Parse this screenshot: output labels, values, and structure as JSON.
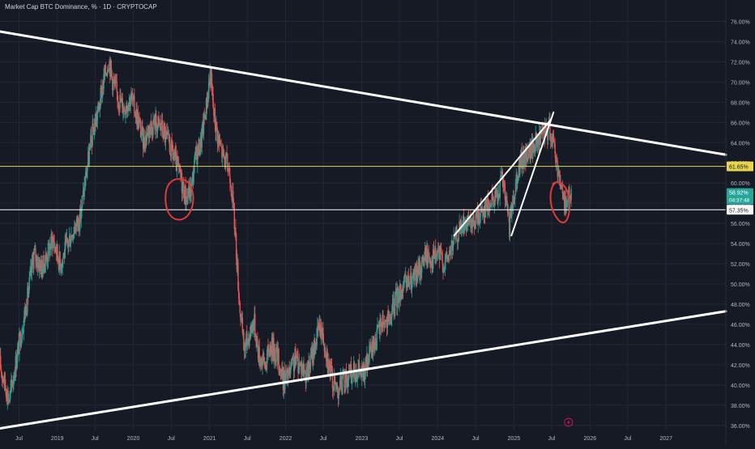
{
  "header": {
    "title": "Market Cap BTC Dominance, % · 1D · CRYPTOCAP"
  },
  "colors": {
    "background": "#161a25",
    "grid": "#232733",
    "text": "#b2b5be",
    "candle_up": "#26a69a",
    "candle_down": "#ef5350",
    "drawing": "#ffffff",
    "level_upper": "#e8d44d",
    "level_lower": "#ffffff",
    "annotation": "#e03a3a",
    "price_badge": "#26a69a"
  },
  "chart_data": {
    "type": "candlestick",
    "title": "Market Cap BTC Dominance, % · 1D · CRYPTOCAP",
    "x_ticks": [
      "Jul",
      "2019",
      "Jul",
      "2020",
      "Jul",
      "2021",
      "Jul",
      "2022",
      "Jul",
      "2023",
      "Jul",
      "2024",
      "Jul",
      "2025",
      "Jul",
      "2026",
      "Jul",
      "2027"
    ],
    "y_ticks": [
      "76.00%",
      "74.00%",
      "72.00%",
      "70.00%",
      "68.00%",
      "66.00%",
      "64.00%",
      "62.00%",
      "60.00%",
      "58.00%",
      "56.00%",
      "54.00%",
      "52.00%",
      "50.00%",
      "48.00%",
      "46.00%",
      "44.00%",
      "42.00%",
      "40.00%",
      "38.00%",
      "36.00%"
    ],
    "ylim": [
      35.5,
      77.0
    ],
    "xlim": [
      "2018-04-01",
      "2027-10-15"
    ],
    "grid": true,
    "series": [
      {
        "points": [
          [
            "2018-04-01",
            42.0
          ],
          [
            "2018-05-15",
            38.5
          ],
          [
            "2018-07-01",
            44.0
          ],
          [
            "2018-08-10",
            48.5
          ],
          [
            "2018-09-10",
            53.0
          ],
          [
            "2018-10-20",
            51.5
          ],
          [
            "2018-12-10",
            54.5
          ],
          [
            "2019-01-15",
            52.0
          ],
          [
            "2019-02-20",
            54.0
          ],
          [
            "2019-03-20",
            55.5
          ],
          [
            "2019-04-20",
            56.5
          ],
          [
            "2019-05-20",
            61.0
          ],
          [
            "2019-06-20",
            65.0
          ],
          [
            "2019-07-20",
            67.5
          ],
          [
            "2019-08-10",
            70.0
          ],
          [
            "2019-09-05",
            72.3
          ],
          [
            "2019-09-25",
            70.0
          ],
          [
            "2019-10-20",
            68.5
          ],
          [
            "2019-11-15",
            67.5
          ],
          [
            "2019-12-20",
            68.5
          ],
          [
            "2020-01-20",
            66.5
          ],
          [
            "2020-02-20",
            64.0
          ],
          [
            "2020-03-15",
            65.5
          ],
          [
            "2020-04-15",
            66.0
          ],
          [
            "2020-05-15",
            65.5
          ],
          [
            "2020-06-15",
            64.0
          ],
          [
            "2020-07-15",
            62.5
          ],
          [
            "2020-08-15",
            60.5
          ],
          [
            "2020-09-10",
            58.5
          ],
          [
            "2020-10-05",
            59.5
          ],
          [
            "2020-10-25",
            62.5
          ],
          [
            "2020-11-20",
            64.0
          ],
          [
            "2020-12-15",
            67.5
          ],
          [
            "2021-01-05",
            71.0
          ],
          [
            "2021-01-20",
            67.0
          ],
          [
            "2021-02-15",
            64.0
          ],
          [
            "2021-03-10",
            62.5
          ],
          [
            "2021-04-10",
            61.0
          ],
          [
            "2021-05-01",
            56.0
          ],
          [
            "2021-05-25",
            48.0
          ],
          [
            "2021-06-15",
            43.5
          ],
          [
            "2021-07-10",
            45.0
          ],
          [
            "2021-08-01",
            46.5
          ],
          [
            "2021-08-25",
            43.0
          ],
          [
            "2021-09-25",
            42.0
          ],
          [
            "2021-10-20",
            44.0
          ],
          [
            "2021-11-20",
            43.0
          ],
          [
            "2021-12-20",
            40.5
          ],
          [
            "2022-01-20",
            41.0
          ],
          [
            "2022-02-15",
            42.5
          ],
          [
            "2022-03-15",
            42.0
          ],
          [
            "2022-04-15",
            41.0
          ],
          [
            "2022-05-15",
            43.5
          ],
          [
            "2022-06-15",
            46.0
          ],
          [
            "2022-07-10",
            44.0
          ],
          [
            "2022-08-01",
            41.5
          ],
          [
            "2022-08-20",
            40.0
          ],
          [
            "2022-09-10",
            39.7
          ],
          [
            "2022-10-10",
            40.5
          ],
          [
            "2022-11-10",
            41.0
          ],
          [
            "2022-12-10",
            41.5
          ],
          [
            "2023-01-10",
            41.0
          ],
          [
            "2023-02-10",
            43.0
          ],
          [
            "2023-03-10",
            44.5
          ],
          [
            "2023-04-10",
            46.5
          ],
          [
            "2023-05-10",
            46.0
          ],
          [
            "2023-06-15",
            48.5
          ],
          [
            "2023-07-10",
            49.5
          ],
          [
            "2023-08-10",
            50.0
          ],
          [
            "2023-09-10",
            50.5
          ],
          [
            "2023-10-05",
            51.5
          ],
          [
            "2023-11-05",
            53.0
          ],
          [
            "2023-12-05",
            52.5
          ],
          [
            "2024-01-05",
            53.0
          ],
          [
            "2024-02-05",
            52.0
          ],
          [
            "2024-03-05",
            53.5
          ],
          [
            "2024-04-05",
            55.0
          ],
          [
            "2024-05-05",
            56.0
          ],
          [
            "2024-06-05",
            55.5
          ],
          [
            "2024-07-05",
            56.5
          ],
          [
            "2024-08-05",
            57.5
          ],
          [
            "2024-09-05",
            58.0
          ],
          [
            "2024-10-05",
            58.5
          ],
          [
            "2024-11-05",
            60.5
          ],
          [
            "2024-11-25",
            58.0
          ],
          [
            "2024-12-10",
            55.5
          ],
          [
            "2024-12-25",
            58.0
          ],
          [
            "2025-01-15",
            61.0
          ],
          [
            "2025-02-15",
            62.5
          ],
          [
            "2025-03-15",
            63.0
          ],
          [
            "2025-04-15",
            64.0
          ],
          [
            "2025-05-15",
            64.5
          ],
          [
            "2025-06-20",
            65.5
          ],
          [
            "2025-07-05",
            64.5
          ],
          [
            "2025-07-25",
            62.0
          ],
          [
            "2025-08-10",
            60.5
          ],
          [
            "2025-08-25",
            58.5
          ],
          [
            "2025-09-10",
            58.0
          ],
          [
            "2025-09-25",
            59.0
          ],
          [
            "2025-10-05",
            58.5
          ]
        ]
      }
    ],
    "drawings": {
      "upper_trendline": {
        "from": [
          "2018-04-01",
          75.0
        ],
        "to": [
          "2027-10-15",
          62.8
        ]
      },
      "lower_trendline": {
        "from": [
          "2018-04-01",
          35.7
        ],
        "to": [
          "2027-10-15",
          47.3
        ]
      },
      "wedge_lower": {
        "from": [
          "2024-03-20",
          54.8
        ],
        "to": [
          "2025-06-28",
          66.3
        ]
      },
      "wedge_upper": {
        "from": [
          "2024-12-20",
          54.8
        ],
        "to": [
          "2025-07-10",
          67.0
        ]
      },
      "horizontal_levels": [
        {
          "value": 61.65,
          "label": "61.65%",
          "color": "#e8d44d"
        },
        {
          "value": 57.35,
          "label": "57.35%",
          "color": "#ffffff"
        }
      ],
      "circle_annotations": [
        {
          "center": [
            "2020-08-10",
            58.3
          ]
        },
        {
          "center": [
            "2025-08-15",
            58.0
          ]
        }
      ]
    },
    "current_price": {
      "value": 58.92,
      "label": "58.92%",
      "countdown": "04:37:48"
    }
  }
}
